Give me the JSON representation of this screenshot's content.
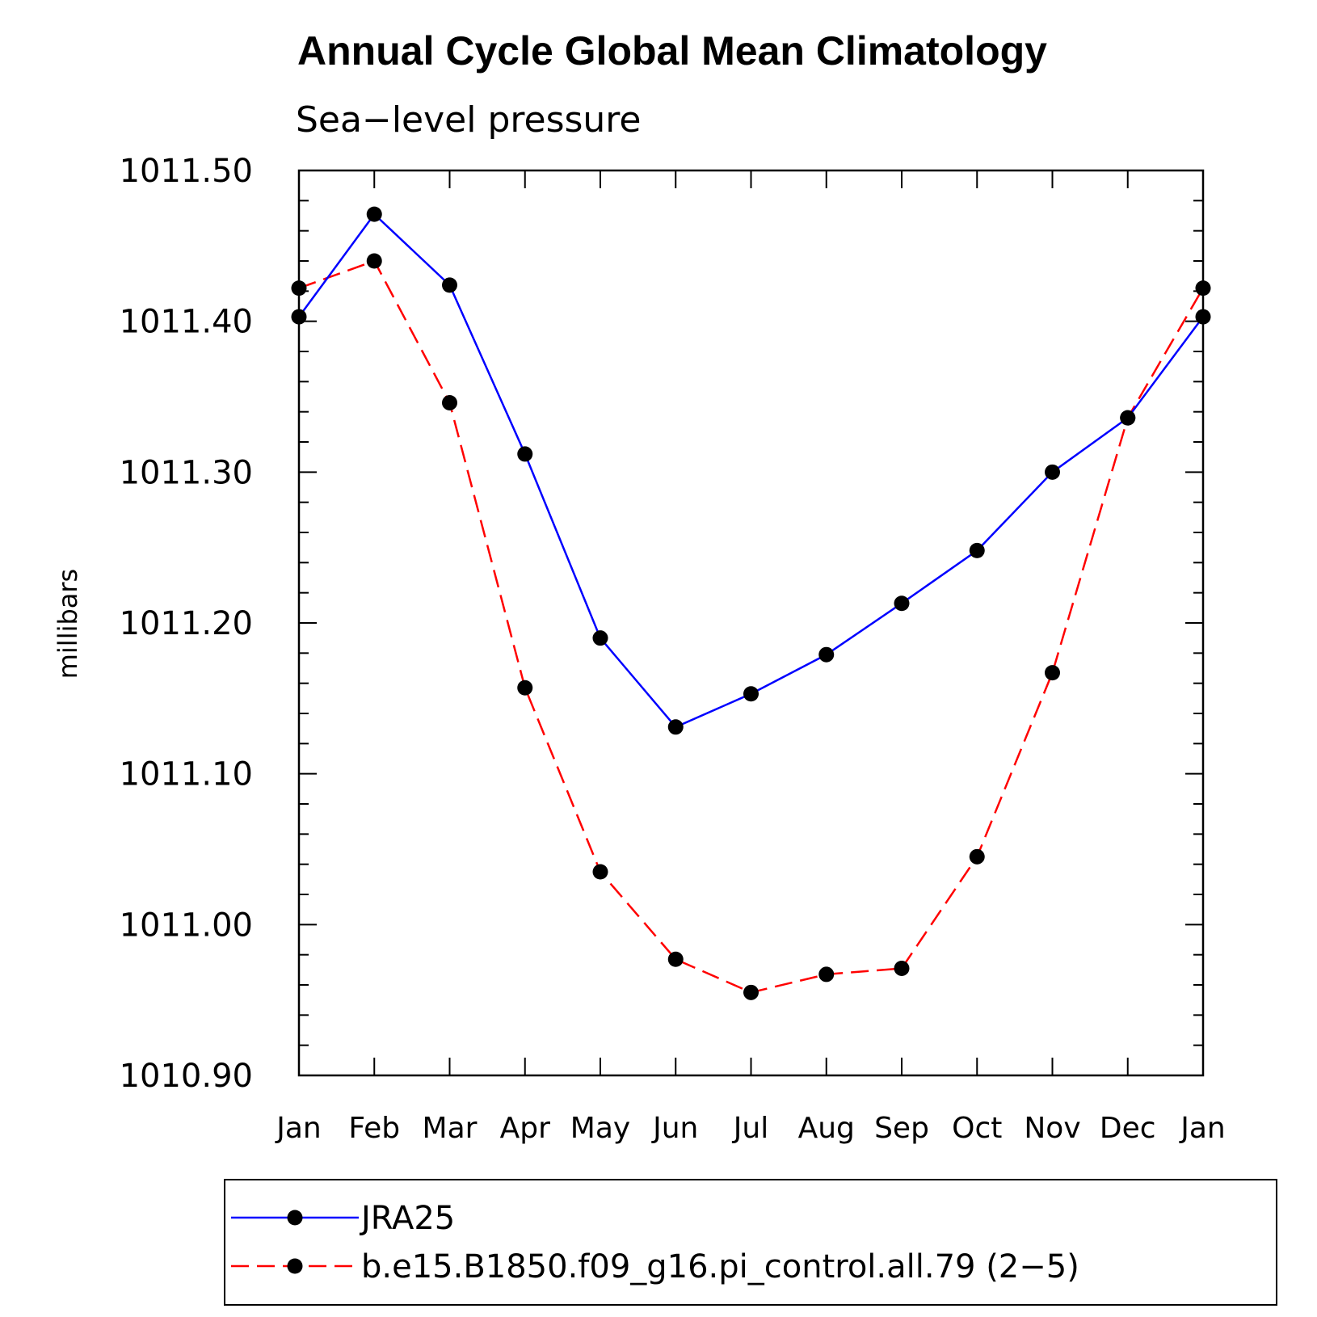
{
  "chart_data": {
    "type": "line",
    "title": "Annual Cycle Global Mean Climatology",
    "subtitle": "Sea−level pressure",
    "ylabel": "millibars",
    "xlabel": "",
    "categories": [
      "Jan",
      "Feb",
      "Mar",
      "Apr",
      "May",
      "Jun",
      "Jul",
      "Aug",
      "Sep",
      "Oct",
      "Nov",
      "Dec",
      "Jan"
    ],
    "ylim": [
      1010.9,
      1011.5
    ],
    "yticks": [
      "1011.50",
      "1011.40",
      "1011.30",
      "1011.20",
      "1011.10",
      "1011.00",
      "1010.90"
    ],
    "ytick_values": [
      1011.5,
      1011.4,
      1011.3,
      1011.2,
      1011.1,
      1011.0,
      1010.9
    ],
    "grid": false,
    "legend_position": "bottom",
    "series": [
      {
        "name": "JRA25",
        "color": "#0000ff",
        "dash": "solid",
        "marker": "filled-circle",
        "values": [
          1011.403,
          1011.471,
          1011.424,
          1011.312,
          1011.19,
          1011.131,
          1011.153,
          1011.179,
          1011.213,
          1011.248,
          1011.3,
          1011.336,
          1011.403
        ]
      },
      {
        "name": "b.e15.B1850.f09_g16.pi_control.all.79 (2−5)",
        "color": "#ff0000",
        "dash": "dashed",
        "marker": "filled-circle",
        "values": [
          1011.422,
          1011.44,
          1011.346,
          1011.157,
          1011.035,
          1010.977,
          1010.955,
          1010.967,
          1010.971,
          1011.045,
          1011.167,
          1011.336,
          1011.422
        ]
      }
    ]
  }
}
